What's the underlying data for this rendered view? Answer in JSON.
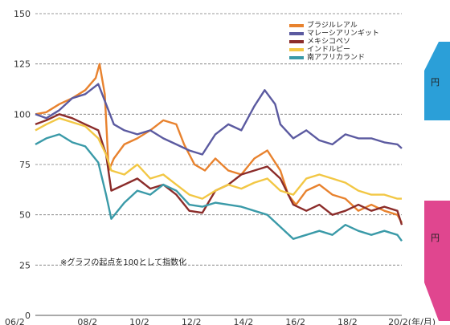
{
  "chart_data": {
    "type": "line",
    "title": "",
    "xlabel": "",
    "ylabel": "",
    "ylim": [
      0,
      150
    ],
    "y_ticks": [
      "0",
      "25",
      "50",
      "75",
      "100",
      "125",
      "150"
    ],
    "x_tick_labels": [
      "06/2",
      "08/2",
      "10/2",
      "12/2",
      "14/2",
      "16/2",
      "18/2",
      "20/2(年/月)"
    ],
    "grid": "horizontal-dashed",
    "legend_position": "top-right",
    "note": "※グラフの起点を100として指数化",
    "side_labels": [
      "円",
      "円"
    ],
    "series": [
      {
        "name": "ブラジルレアル",
        "color": "#e8822e",
        "values": [
          [
            2006.08,
            100
          ],
          [
            2006.5,
            101
          ],
          [
            2007,
            105
          ],
          [
            2007.5,
            108
          ],
          [
            2008,
            112
          ],
          [
            2008.4,
            118
          ],
          [
            2008.55,
            125
          ],
          [
            2008.75,
            110
          ],
          [
            2008.9,
            72
          ],
          [
            2009.1,
            78
          ],
          [
            2009.5,
            85
          ],
          [
            2010,
            88
          ],
          [
            2010.5,
            92
          ],
          [
            2011,
            97
          ],
          [
            2011.5,
            95
          ],
          [
            2011.8,
            85
          ],
          [
            2012.2,
            75
          ],
          [
            2012.6,
            72
          ],
          [
            2013,
            78
          ],
          [
            2013.5,
            72
          ],
          [
            2014,
            70
          ],
          [
            2014.5,
            78
          ],
          [
            2015,
            82
          ],
          [
            2015.5,
            72
          ],
          [
            2015.8,
            60
          ],
          [
            2016.1,
            55
          ],
          [
            2016.5,
            62
          ],
          [
            2017,
            65
          ],
          [
            2017.5,
            60
          ],
          [
            2018,
            58
          ],
          [
            2018.5,
            52
          ],
          [
            2019,
            55
          ],
          [
            2019.5,
            52
          ],
          [
            2020,
            50
          ],
          [
            2020.17,
            46
          ]
        ]
      },
      {
        "name": "マレーシアリンギット",
        "color": "#5b5aa0",
        "values": [
          [
            2006.08,
            100
          ],
          [
            2006.5,
            98
          ],
          [
            2007,
            102
          ],
          [
            2007.5,
            108
          ],
          [
            2008,
            110
          ],
          [
            2008.5,
            115
          ],
          [
            2008.8,
            105
          ],
          [
            2009.1,
            95
          ],
          [
            2009.5,
            92
          ],
          [
            2010,
            90
          ],
          [
            2010.5,
            92
          ],
          [
            2011,
            88
          ],
          [
            2011.5,
            85
          ],
          [
            2012,
            82
          ],
          [
            2012.5,
            80
          ],
          [
            2013,
            90
          ],
          [
            2013.5,
            95
          ],
          [
            2014,
            92
          ],
          [
            2014.5,
            104
          ],
          [
            2014.9,
            112
          ],
          [
            2015.3,
            105
          ],
          [
            2015.5,
            95
          ],
          [
            2016,
            88
          ],
          [
            2016.5,
            92
          ],
          [
            2017,
            87
          ],
          [
            2017.5,
            85
          ],
          [
            2018,
            90
          ],
          [
            2018.5,
            88
          ],
          [
            2019,
            88
          ],
          [
            2019.5,
            86
          ],
          [
            2020,
            85
          ],
          [
            2020.17,
            83
          ]
        ]
      },
      {
        "name": "メキシコペソ",
        "color": "#8b2c2a",
        "values": [
          [
            2006.08,
            95
          ],
          [
            2006.5,
            97
          ],
          [
            2007,
            100
          ],
          [
            2007.5,
            98
          ],
          [
            2008,
            95
          ],
          [
            2008.5,
            92
          ],
          [
            2008.8,
            80
          ],
          [
            2009,
            62
          ],
          [
            2009.5,
            65
          ],
          [
            2010,
            68
          ],
          [
            2010.5,
            63
          ],
          [
            2011,
            65
          ],
          [
            2011.5,
            60
          ],
          [
            2012,
            52
          ],
          [
            2012.5,
            51
          ],
          [
            2013,
            62
          ],
          [
            2013.5,
            65
          ],
          [
            2014,
            70
          ],
          [
            2014.5,
            72
          ],
          [
            2015,
            74
          ],
          [
            2015.5,
            68
          ],
          [
            2016,
            55
          ],
          [
            2016.5,
            52
          ],
          [
            2017,
            55
          ],
          [
            2017.5,
            50
          ],
          [
            2018,
            52
          ],
          [
            2018.5,
            55
          ],
          [
            2019,
            52
          ],
          [
            2019.5,
            54
          ],
          [
            2020,
            52
          ],
          [
            2020.17,
            45
          ]
        ]
      },
      {
        "name": "インドルピー",
        "color": "#f2c744",
        "values": [
          [
            2006.08,
            92
          ],
          [
            2006.5,
            95
          ],
          [
            2007,
            98
          ],
          [
            2007.5,
            96
          ],
          [
            2008,
            94
          ],
          [
            2008.5,
            88
          ],
          [
            2008.8,
            80
          ],
          [
            2009,
            72
          ],
          [
            2009.5,
            70
          ],
          [
            2010,
            75
          ],
          [
            2010.5,
            68
          ],
          [
            2011,
            70
          ],
          [
            2011.5,
            65
          ],
          [
            2012,
            60
          ],
          [
            2012.5,
            58
          ],
          [
            2013,
            62
          ],
          [
            2013.5,
            65
          ],
          [
            2014,
            63
          ],
          [
            2014.5,
            66
          ],
          [
            2015,
            68
          ],
          [
            2015.5,
            62
          ],
          [
            2016,
            60
          ],
          [
            2016.5,
            68
          ],
          [
            2017,
            70
          ],
          [
            2017.5,
            68
          ],
          [
            2018,
            66
          ],
          [
            2018.5,
            62
          ],
          [
            2019,
            60
          ],
          [
            2019.5,
            60
          ],
          [
            2020,
            58
          ],
          [
            2020.17,
            58
          ]
        ]
      },
      {
        "name": "南アフリカランド",
        "color": "#3a9aa8",
        "values": [
          [
            2006.08,
            85
          ],
          [
            2006.5,
            88
          ],
          [
            2007,
            90
          ],
          [
            2007.5,
            86
          ],
          [
            2008,
            84
          ],
          [
            2008.5,
            76
          ],
          [
            2008.8,
            60
          ],
          [
            2009,
            48
          ],
          [
            2009.5,
            56
          ],
          [
            2010,
            62
          ],
          [
            2010.5,
            60
          ],
          [
            2011,
            65
          ],
          [
            2011.5,
            62
          ],
          [
            2012,
            55
          ],
          [
            2012.5,
            54
          ],
          [
            2013,
            56
          ],
          [
            2013.5,
            55
          ],
          [
            2014,
            54
          ],
          [
            2014.5,
            52
          ],
          [
            2015,
            50
          ],
          [
            2015.5,
            44
          ],
          [
            2016,
            38
          ],
          [
            2016.5,
            40
          ],
          [
            2017,
            42
          ],
          [
            2017.5,
            40
          ],
          [
            2018,
            45
          ],
          [
            2018.5,
            42
          ],
          [
            2019,
            40
          ],
          [
            2019.5,
            42
          ],
          [
            2020,
            40
          ],
          [
            2020.17,
            37
          ]
        ]
      }
    ]
  },
  "sidebar": {
    "arrow_up_color": "#2b9fd8",
    "arrow_down_color": "#e0468f"
  }
}
